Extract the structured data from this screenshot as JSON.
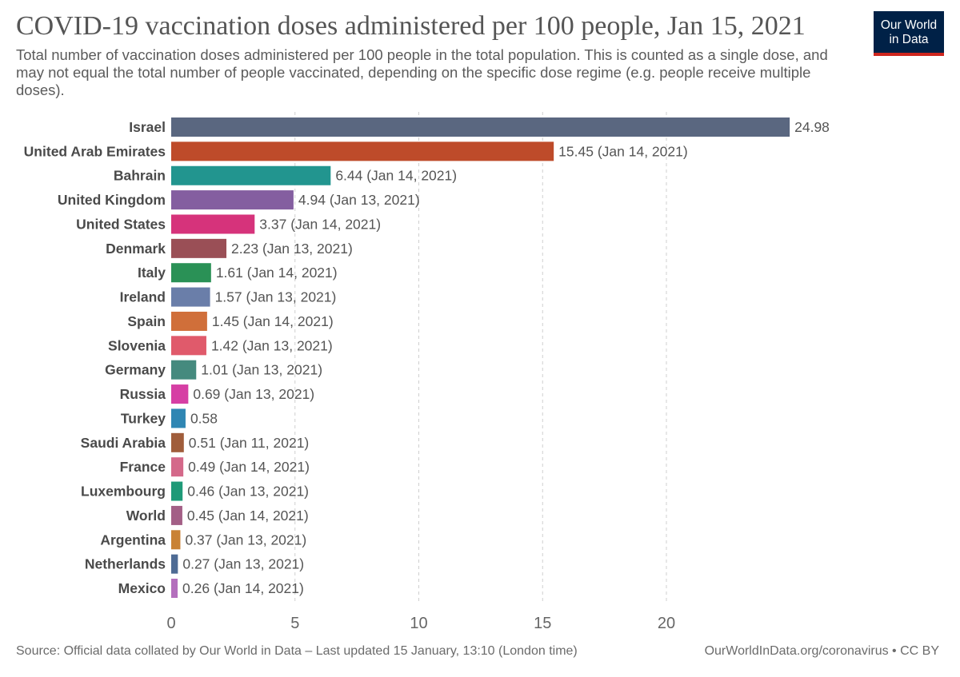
{
  "header": {
    "title": "COVID-19 vaccination doses administered per 100 people, Jan 15, 2021",
    "subtitle": "Total number of vaccination doses administered per 100 people in the total population. This is counted as a single dose, and may not equal the total number of people vaccinated, depending on the specific dose regime (e.g. people receive multiple doses).",
    "logo_line1": "Our World",
    "logo_line2": "in Data"
  },
  "footer": {
    "source": "Source: Official data collated by Our World in Data – Last updated 15 January, 13:10 (London time)",
    "credit": "OurWorldInData.org/coronavirus • CC BY"
  },
  "colors": {
    "logo_bg": "#002147",
    "logo_accent": "#ce261e"
  },
  "chart_data": {
    "type": "bar",
    "orientation": "horizontal",
    "grid": "vertical dashed",
    "xlim": [
      0,
      25
    ],
    "xticks": [
      0,
      5,
      10,
      15,
      20
    ],
    "bars": [
      {
        "category": "Israel",
        "value": 24.98,
        "label": "24.98",
        "color": "#5a6780"
      },
      {
        "category": "United Arab Emirates",
        "value": 15.45,
        "label": "15.45 (Jan 14, 2021)",
        "color": "#be4b2a"
      },
      {
        "category": "Bahrain",
        "value": 6.44,
        "label": "6.44 (Jan 14, 2021)",
        "color": "#22958f"
      },
      {
        "category": "United Kingdom",
        "value": 4.94,
        "label": "4.94 (Jan 13, 2021)",
        "color": "#845ea0"
      },
      {
        "category": "United States",
        "value": 3.37,
        "label": "3.37 (Jan 14, 2021)",
        "color": "#d6337b"
      },
      {
        "category": "Denmark",
        "value": 2.23,
        "label": "2.23 (Jan 13, 2021)",
        "color": "#9a4f56"
      },
      {
        "category": "Italy",
        "value": 1.61,
        "label": "1.61 (Jan 14, 2021)",
        "color": "#2a9156"
      },
      {
        "category": "Ireland",
        "value": 1.57,
        "label": "1.57 (Jan 13, 2021)",
        "color": "#6a7ea9"
      },
      {
        "category": "Spain",
        "value": 1.45,
        "label": "1.45 (Jan 14, 2021)",
        "color": "#d06f3a"
      },
      {
        "category": "Slovenia",
        "value": 1.42,
        "label": "1.42 (Jan 13, 2021)",
        "color": "#e05a6b"
      },
      {
        "category": "Germany",
        "value": 1.01,
        "label": "1.01 (Jan 13, 2021)",
        "color": "#458a7e"
      },
      {
        "category": "Russia",
        "value": 0.69,
        "label": "0.69 (Jan 13, 2021)",
        "color": "#d63fa4"
      },
      {
        "category": "Turkey",
        "value": 0.58,
        "label": "0.58",
        "color": "#2f86b3"
      },
      {
        "category": "Saudi Arabia",
        "value": 0.51,
        "label": "0.51 (Jan 11, 2021)",
        "color": "#a05d3b"
      },
      {
        "category": "France",
        "value": 0.49,
        "label": "0.49 (Jan 14, 2021)",
        "color": "#d4698a"
      },
      {
        "category": "Luxembourg",
        "value": 0.46,
        "label": "0.46 (Jan 13, 2021)",
        "color": "#1f9a78"
      },
      {
        "category": "World",
        "value": 0.45,
        "label": "0.45 (Jan 14, 2021)",
        "color": "#a35f86"
      },
      {
        "category": "Argentina",
        "value": 0.37,
        "label": "0.37 (Jan 13, 2021)",
        "color": "#c98235"
      },
      {
        "category": "Netherlands",
        "value": 0.27,
        "label": "0.27 (Jan 13, 2021)",
        "color": "#4e6b94"
      },
      {
        "category": "Mexico",
        "value": 0.26,
        "label": "0.26 (Jan 14, 2021)",
        "color": "#b46fbd"
      }
    ]
  }
}
